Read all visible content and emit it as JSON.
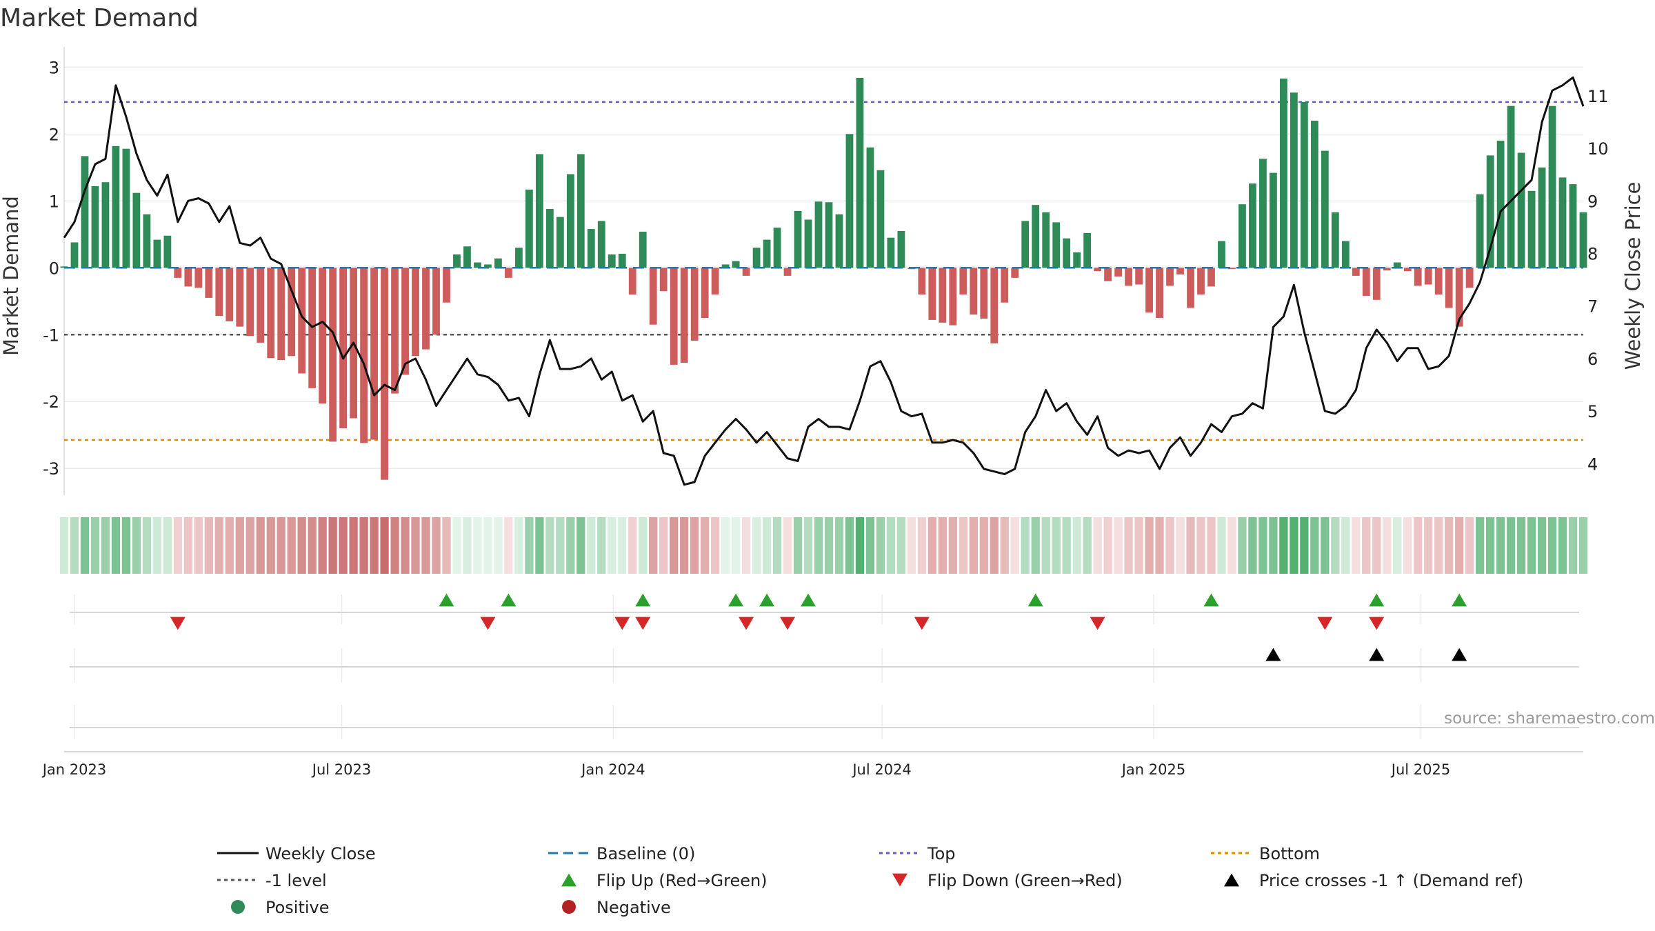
{
  "chart_data": {
    "type": "bar+line",
    "title": "Market Demand",
    "ylabel_left": "Market Demand",
    "ylabel_right": "Weekly Close Price",
    "ylim_left": [
      -3.4,
      3.2
    ],
    "ylim_right": [
      3.4,
      11.8
    ],
    "yticks_left": [
      -3,
      -2,
      -1,
      0,
      1,
      2,
      3
    ],
    "yticks_right": [
      4,
      5,
      6,
      7,
      8,
      9,
      10,
      11
    ],
    "x_start": "2022-12-25",
    "x_interval_days": 7,
    "xticks": [
      {
        "date": "2023-01-01",
        "label": "Jan 2023"
      },
      {
        "date": "2023-07-01",
        "label": "Jul 2023"
      },
      {
        "date": "2024-01-01",
        "label": "Jan 2024"
      },
      {
        "date": "2024-07-01",
        "label": "Jul 2024"
      },
      {
        "date": "2025-01-01",
        "label": "Jan 2025"
      },
      {
        "date": "2025-07-01",
        "label": "Jul 2025"
      }
    ],
    "reference_lines": [
      {
        "name": "Top",
        "axis": "left",
        "value": 2.48,
        "color": "#6a5acd",
        "style": "dotted"
      },
      {
        "name": "-1 level",
        "axis": "left",
        "value": -1,
        "color": "#555555",
        "style": "dotted"
      },
      {
        "name": "Bottom",
        "axis": "right",
        "value": 4.45,
        "color": "#e08a00",
        "style": "dotted"
      },
      {
        "name": "Baseline (0)",
        "axis": "left",
        "value": 0,
        "color": "#1f77b4",
        "style": "dashed"
      }
    ],
    "demand": [
      0.02,
      0.38,
      1.67,
      1.22,
      1.28,
      1.82,
      1.78,
      1.12,
      0.8,
      0.42,
      0.48,
      -0.15,
      -0.28,
      -0.3,
      -0.45,
      -0.72,
      -0.8,
      -0.88,
      -1.02,
      -1.12,
      -1.35,
      -1.38,
      -1.32,
      -1.58,
      -1.8,
      -2.03,
      -2.6,
      -2.4,
      -2.25,
      -2.62,
      -2.57,
      -3.17,
      -1.88,
      -1.6,
      -1.32,
      -1.22,
      -1.0,
      -0.52,
      0.2,
      0.32,
      0.08,
      0.05,
      0.14,
      -0.15,
      0.3,
      1.17,
      1.7,
      0.88,
      0.76,
      1.4,
      1.7,
      0.58,
      0.7,
      0.2,
      0.21,
      -0.4,
      0.54,
      -0.85,
      -0.35,
      -1.45,
      -1.42,
      -1.09,
      -0.75,
      -0.4,
      0.05,
      0.1,
      -0.12,
      0.3,
      0.42,
      0.6,
      -0.12,
      0.85,
      0.72,
      0.99,
      0.98,
      0.8,
      2.0,
      2.84,
      1.8,
      1.46,
      0.45,
      0.55,
      -0.02,
      -0.4,
      -0.78,
      -0.82,
      -0.86,
      -0.4,
      -0.7,
      -0.76,
      -1.13,
      -0.52,
      -0.15,
      0.7,
      0.94,
      0.83,
      0.68,
      0.44,
      0.23,
      0.52,
      -0.05,
      -0.2,
      -0.13,
      -0.27,
      -0.25,
      -0.67,
      -0.75,
      -0.27,
      -0.1,
      -0.6,
      -0.4,
      -0.28,
      0.4,
      -0.02,
      0.95,
      1.26,
      1.63,
      1.42,
      2.83,
      2.62,
      2.48,
      2.2,
      1.75,
      0.83,
      0.4,
      -0.12,
      -0.42,
      -0.48,
      -0.04,
      0.08,
      -0.05,
      -0.27,
      -0.25,
      -0.4,
      -0.6,
      -0.88,
      -0.3,
      1.1,
      1.68,
      1.9,
      2.42,
      1.72,
      1.15,
      1.5,
      2.42,
      1.35,
      1.25,
      0.83
    ],
    "weekly_close": [
      8.3,
      8.6,
      9.2,
      9.7,
      9.8,
      11.2,
      10.6,
      9.9,
      9.4,
      9.1,
      9.5,
      8.6,
      9.0,
      9.05,
      8.95,
      8.6,
      8.9,
      8.2,
      8.15,
      8.3,
      7.9,
      7.8,
      7.3,
      6.8,
      6.6,
      6.7,
      6.5,
      6.0,
      6.3,
      5.9,
      5.3,
      5.5,
      5.4,
      5.9,
      6.0,
      5.6,
      5.1,
      5.4,
      5.7,
      6.0,
      5.7,
      5.65,
      5.5,
      5.2,
      5.25,
      4.9,
      5.7,
      6.35,
      5.8,
      5.8,
      5.85,
      6.0,
      5.6,
      5.75,
      5.2,
      5.3,
      4.8,
      5.0,
      4.2,
      4.15,
      3.6,
      3.65,
      4.15,
      4.4,
      4.65,
      4.85,
      4.65,
      4.4,
      4.6,
      4.35,
      4.1,
      4.05,
      4.7,
      4.85,
      4.7,
      4.7,
      4.65,
      5.2,
      5.85,
      5.95,
      5.55,
      5.0,
      4.9,
      4.95,
      4.4,
      4.4,
      4.45,
      4.4,
      4.2,
      3.9,
      3.85,
      3.8,
      3.9,
      4.6,
      4.9,
      5.4,
      5.0,
      5.15,
      4.8,
      4.55,
      4.9,
      4.3,
      4.15,
      4.25,
      4.2,
      4.25,
      3.9,
      4.3,
      4.5,
      4.15,
      4.4,
      4.75,
      4.6,
      4.9,
      4.95,
      5.15,
      5.05,
      6.6,
      6.8,
      7.4,
      6.5,
      5.75,
      5.0,
      4.95,
      5.1,
      5.4,
      6.2,
      6.55,
      6.3,
      5.95,
      6.2,
      6.2,
      5.8,
      5.85,
      6.05,
      6.75,
      7.05,
      7.45,
      8.1,
      8.8,
      9.0,
      9.2,
      9.4,
      10.5,
      11.1,
      11.2,
      11.35,
      10.8
    ],
    "strip_colors": [
      "#cfe9d7",
      "#b4dcc0",
      "#7cc293",
      "#99cfa9",
      "#99cfa9",
      "#7cc293",
      "#7cc293",
      "#99cfa9",
      "#b4dcc0",
      "#cfe9d7",
      "#cfe9d7",
      "#f0d0d0",
      "#ecc6c6",
      "#ecc6c6",
      "#e7baba",
      "#e2aeae",
      "#e2aeae",
      "#dda3a3",
      "#dda3a3",
      "#d99898",
      "#d99898",
      "#d99898",
      "#d99898",
      "#d48d8d",
      "#d48d8d",
      "#d08282",
      "#cc7777",
      "#cc7777",
      "#cc7777",
      "#cc7777",
      "#cc7777",
      "#c96c6c",
      "#d08282",
      "#d48d8d",
      "#d99898",
      "#d99898",
      "#dda3a3",
      "#e7baba",
      "#e3f3e8",
      "#d8efdf",
      "#e3f3e8",
      "#e3f3e8",
      "#e3f3e8",
      "#f4dede",
      "#d8efdf",
      "#99cfa9",
      "#7cc293",
      "#b4dcc0",
      "#b4dcc0",
      "#99cfa9",
      "#7cc293",
      "#cfe9d7",
      "#b4dcc0",
      "#d8efdf",
      "#d8efdf",
      "#f0d0d0",
      "#cfe9d7",
      "#dda3a3",
      "#ecc6c6",
      "#d99898",
      "#d99898",
      "#dda3a3",
      "#e2aeae",
      "#ecc6c6",
      "#e3f3e8",
      "#e3f3e8",
      "#f4dede",
      "#d8efdf",
      "#cfe9d7",
      "#b4dcc0",
      "#f4dede",
      "#99cfa9",
      "#b4dcc0",
      "#99cfa9",
      "#99cfa9",
      "#99cfa9",
      "#7cc293",
      "#55b06f",
      "#7cc293",
      "#99cfa9",
      "#b4dcc0",
      "#b4dcc0",
      "#f4dede",
      "#f0d0d0",
      "#e2aeae",
      "#e2aeae",
      "#e2aeae",
      "#ecc6c6",
      "#e2aeae",
      "#e2aeae",
      "#dda3a3",
      "#e7baba",
      "#f4dede",
      "#b4dcc0",
      "#99cfa9",
      "#b4dcc0",
      "#b4dcc0",
      "#b4dcc0",
      "#cfe9d7",
      "#b4dcc0",
      "#f4dede",
      "#f0d0d0",
      "#f4dede",
      "#ecc6c6",
      "#ecc6c6",
      "#e2aeae",
      "#e2aeae",
      "#ecc6c6",
      "#f4dede",
      "#e7baba",
      "#ecc6c6",
      "#ecc6c6",
      "#cfe9d7",
      "#f4dede",
      "#99cfa9",
      "#7cc293",
      "#7cc293",
      "#7cc293",
      "#55b06f",
      "#55b06f",
      "#55b06f",
      "#7cc293",
      "#7cc293",
      "#b4dcc0",
      "#cfe9d7",
      "#f4dede",
      "#ecc6c6",
      "#ecc6c6",
      "#f4dede",
      "#d8efdf",
      "#f4dede",
      "#ecc6c6",
      "#ecc6c6",
      "#ecc6c6",
      "#e7baba",
      "#e2aeae",
      "#ecc6c6",
      "#7cc293",
      "#7cc293",
      "#7cc293",
      "#7cc293",
      "#7cc293",
      "#7cc293",
      "#7cc293",
      "#7cc293",
      "#7cc293",
      "#99cfa9",
      "#99cfa9"
    ],
    "flip_up_weeks": [
      37,
      43,
      56,
      65,
      68,
      72,
      94,
      111,
      127,
      135
    ],
    "flip_down_weeks": [
      11,
      41,
      54,
      56,
      66,
      70,
      83,
      100,
      122,
      127
    ],
    "price_cross_weeks": [
      117,
      127,
      135
    ],
    "colors": {
      "positive": "#2e8b57",
      "negative": "#cd5c5c",
      "close_line": "#111111",
      "flip_up": "#2ca02c",
      "flip_down": "#d62728",
      "cross": "#000000",
      "baseline": "#1f77b4",
      "top": "#6a5acd",
      "minus1": "#555555",
      "bottom": "#e08a00"
    },
    "legend": [
      {
        "label": "Weekly Close",
        "kind": "line-solid",
        "color": "#111111"
      },
      {
        "label": "Baseline (0)",
        "kind": "line-dashed",
        "color": "#1f77b4"
      },
      {
        "label": "Top",
        "kind": "line-dotted",
        "color": "#6a5acd"
      },
      {
        "label": "Bottom",
        "kind": "line-dotted",
        "color": "#e08a00"
      },
      {
        "label": "-1 level",
        "kind": "line-dotted",
        "color": "#555555"
      },
      {
        "label": "Flip Up (Red→Green)",
        "kind": "triangle-up",
        "color": "#2ca02c"
      },
      {
        "label": "Flip Down (Green→Red)",
        "kind": "triangle-down",
        "color": "#d62728"
      },
      {
        "label": "Price crosses -1 ↑ (Demand ref)",
        "kind": "triangle-up",
        "color": "#000000"
      },
      {
        "label": "Positive",
        "kind": "dot",
        "color": "#2e8b57"
      },
      {
        "label": "Negative",
        "kind": "dot",
        "color": "#b22222"
      }
    ],
    "source_note": "source: sharemaestro.com"
  }
}
